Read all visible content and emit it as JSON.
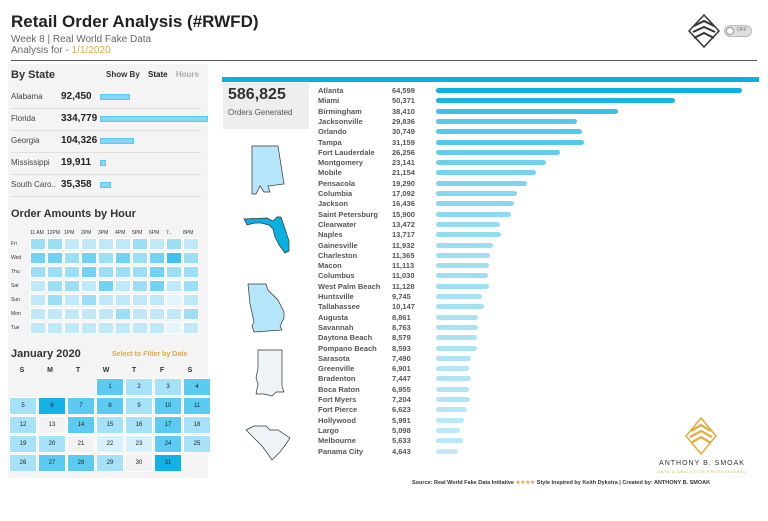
{
  "header": {
    "title": "Retail Order Analysis (#RWFD)",
    "subtitle": "Week 8 | Real World Fake Data",
    "analysis_prefix": "Analysis for - ",
    "analysis_date": "1/1/2020",
    "toggle_label": "OFF"
  },
  "by_state": {
    "title": "By State",
    "show_by_label": "Show By",
    "option_state": "State",
    "option_hours": "Hours",
    "max": 334779,
    "rows": [
      {
        "name": "Alabama",
        "value": "92,450",
        "num": 92450
      },
      {
        "name": "Florida",
        "value": "334,779",
        "num": 334779
      },
      {
        "name": "Georgia",
        "value": "104,326",
        "num": 104326
      },
      {
        "name": "Mississippi",
        "value": "19,911",
        "num": 19911
      },
      {
        "name": "South Caro..",
        "value": "35,358",
        "num": 35358
      }
    ]
  },
  "hours": {
    "title": "Order Amounts by Hour",
    "hour_labels": [
      "11 AM",
      "12PM",
      "1PM",
      "2PM",
      "3PM",
      "4PM",
      "5PM",
      "6PM",
      "7..",
      "8PM"
    ],
    "days": [
      "Fri",
      "Wed",
      "Thu",
      "Sat",
      "Sun",
      "Mon",
      "Tue"
    ],
    "intensity": [
      [
        3,
        3,
        2,
        2,
        2,
        2,
        3,
        2,
        3,
        2
      ],
      [
        4,
        4,
        3,
        4,
        3,
        4,
        3,
        4,
        5,
        3
      ],
      [
        3,
        3,
        3,
        4,
        3,
        3,
        3,
        4,
        3,
        3
      ],
      [
        2,
        3,
        3,
        2,
        4,
        2,
        3,
        4,
        2,
        3
      ],
      [
        2,
        3,
        2,
        3,
        2,
        2,
        2,
        2,
        1,
        2
      ],
      [
        2,
        2,
        2,
        2,
        2,
        3,
        2,
        2,
        2,
        3
      ],
      [
        2,
        2,
        2,
        2,
        2,
        2,
        2,
        2,
        1,
        2
      ]
    ]
  },
  "calendar": {
    "title": "January 2020",
    "filter_hint": "Select to Filter by Date",
    "dow": [
      "S",
      "M",
      "T",
      "W",
      "T",
      "F",
      "S"
    ],
    "weeks": [
      [
        null,
        null,
        null,
        {
          "d": "1",
          "l": 4
        },
        {
          "d": "2",
          "l": 3
        },
        {
          "d": "3",
          "l": 3
        },
        {
          "d": "4",
          "l": 4
        }
      ],
      [
        {
          "d": "5",
          "l": 3
        },
        {
          "d": "6",
          "l": 5
        },
        {
          "d": "7",
          "l": 4
        },
        {
          "d": "8",
          "l": 4
        },
        {
          "d": "9",
          "l": 3
        },
        {
          "d": "10",
          "l": 4
        },
        {
          "d": "11",
          "l": 4
        }
      ],
      [
        {
          "d": "12",
          "l": 3
        },
        {
          "d": "13",
          "l": 1
        },
        {
          "d": "14",
          "l": 4
        },
        {
          "d": "15",
          "l": 3
        },
        {
          "d": "16",
          "l": 3
        },
        {
          "d": "17",
          "l": 4
        },
        {
          "d": "18",
          "l": 3
        }
      ],
      [
        {
          "d": "19",
          "l": 3
        },
        {
          "d": "20",
          "l": 3
        },
        {
          "d": "21",
          "l": 1
        },
        {
          "d": "22",
          "l": 2
        },
        {
          "d": "23",
          "l": 2
        },
        {
          "d": "24",
          "l": 4
        },
        {
          "d": "25",
          "l": 3
        }
      ],
      [
        {
          "d": "26",
          "l": 3
        },
        {
          "d": "27",
          "l": 4
        },
        {
          "d": "28",
          "l": 4
        },
        {
          "d": "29",
          "l": 3
        },
        {
          "d": "30",
          "l": 1
        },
        {
          "d": "31",
          "l": 5
        },
        null
      ]
    ]
  },
  "kpi": {
    "value": "586,825",
    "label": "Orders Generated"
  },
  "cities": {
    "max": 64599,
    "rows": [
      {
        "name": "Atlanta",
        "value": "64,599",
        "num": 64599
      },
      {
        "name": "Miami",
        "value": "50,371",
        "num": 50371
      },
      {
        "name": "Birmingham",
        "value": "38,410",
        "num": 38410
      },
      {
        "name": "Jacksonville",
        "value": "29,836",
        "num": 29836
      },
      {
        "name": "Orlando",
        "value": "30,749",
        "num": 30749
      },
      {
        "name": "Tampa",
        "value": "31,159",
        "num": 31159
      },
      {
        "name": "Fort Lauderdale",
        "value": "26,256",
        "num": 26256
      },
      {
        "name": "Montgomery",
        "value": "23,141",
        "num": 23141
      },
      {
        "name": "Mobile",
        "value": "21,154",
        "num": 21154
      },
      {
        "name": "Pensacola",
        "value": "19,290",
        "num": 19290
      },
      {
        "name": "Columbia",
        "value": "17,092",
        "num": 17092
      },
      {
        "name": "Jackson",
        "value": "16,436",
        "num": 16436
      },
      {
        "name": "Saint Petersburg",
        "value": "15,900",
        "num": 15900
      },
      {
        "name": "Clearwater",
        "value": "13,472",
        "num": 13472
      },
      {
        "name": "Naples",
        "value": "13,717",
        "num": 13717
      },
      {
        "name": "Gainesville",
        "value": "11,932",
        "num": 11932
      },
      {
        "name": "Charleston",
        "value": "11,365",
        "num": 11365
      },
      {
        "name": "Macon",
        "value": "11,113",
        "num": 11113
      },
      {
        "name": "Columbus",
        "value": "11,030",
        "num": 11030
      },
      {
        "name": "West Palm Beach",
        "value": "11,128",
        "num": 11128
      },
      {
        "name": "Huntsville",
        "value": "9,745",
        "num": 9745
      },
      {
        "name": "Tallahassee",
        "value": "10,147",
        "num": 10147
      },
      {
        "name": "Augusta",
        "value": "8,861",
        "num": 8861
      },
      {
        "name": "Savannah",
        "value": "8,763",
        "num": 8763
      },
      {
        "name": "Daytona Beach",
        "value": "8,579",
        "num": 8579
      },
      {
        "name": "Pompano Beach",
        "value": "8,593",
        "num": 8593
      },
      {
        "name": "Sarasota",
        "value": "7,490",
        "num": 7490
      },
      {
        "name": "Greenville",
        "value": "6,901",
        "num": 6901
      },
      {
        "name": "Bradenton",
        "value": "7,447",
        "num": 7447
      },
      {
        "name": "Boca Raton",
        "value": "6,955",
        "num": 6955
      },
      {
        "name": "Fort Myers",
        "value": "7,204",
        "num": 7204
      },
      {
        "name": "Fort Pierce",
        "value": "6,623",
        "num": 6623
      },
      {
        "name": "Hollywood",
        "value": "5,991",
        "num": 5991
      },
      {
        "name": "Largo",
        "value": "5,098",
        "num": 5098
      },
      {
        "name": "Melbourne",
        "value": "5,633",
        "num": 5633
      },
      {
        "name": "Panama City",
        "value": "4,643",
        "num": 4643
      }
    ]
  },
  "footer": {
    "source": "Source: Real World Fake Data Initiative",
    "stars": "★★★★",
    "credit": "Style Inspired by Keith Dykstra | Created by: ANTHONY B. SMOAK"
  },
  "brand": {
    "name": "ANTHONY B. SMOAK",
    "tagline": "DATA & ANALYTICS PROFESSIONAL"
  },
  "colors": {
    "accent": "#0ab0e0",
    "gold": "#e7a93a"
  }
}
